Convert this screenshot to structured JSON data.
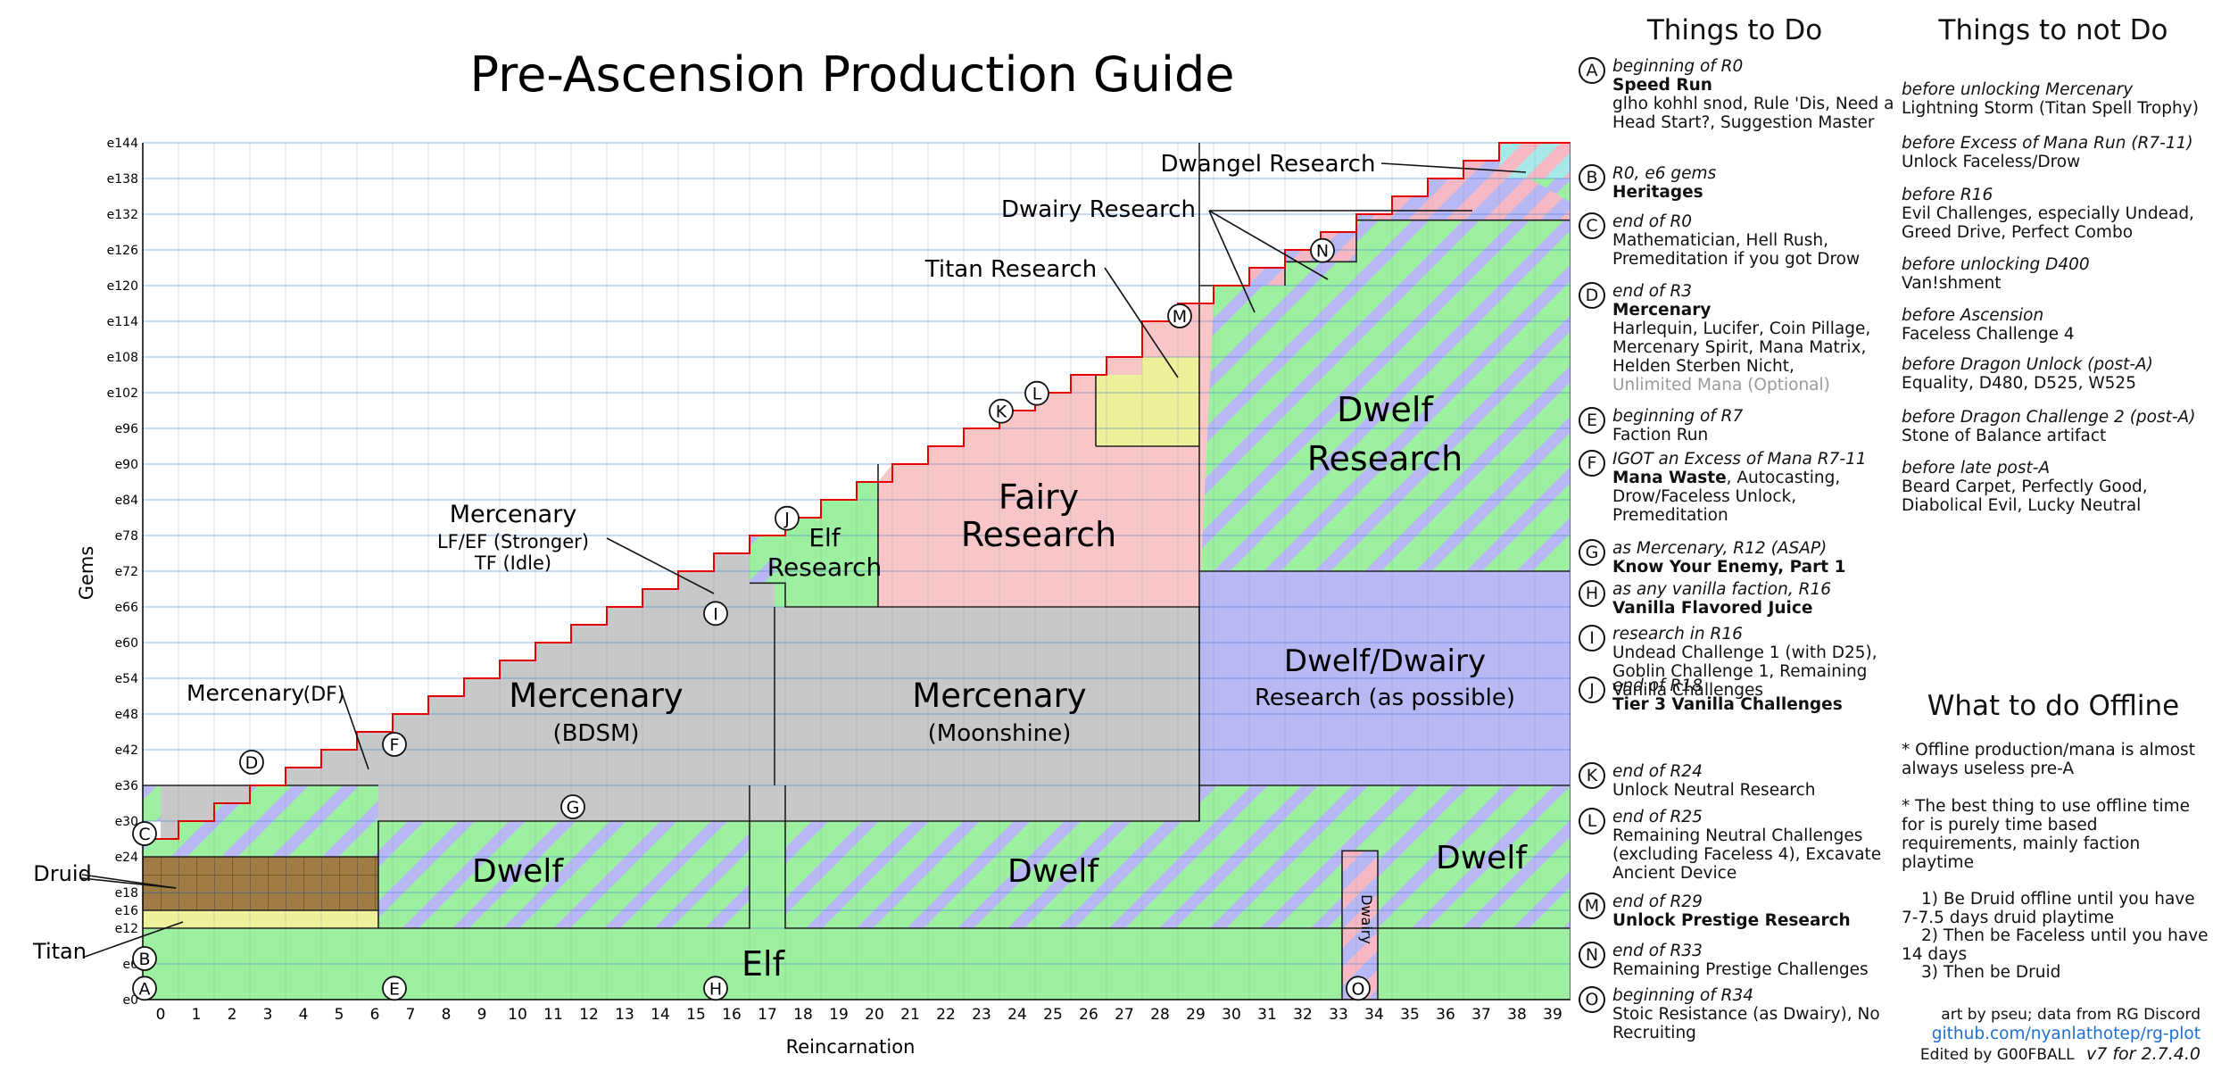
{
  "title": "Pre-Ascension Production Guide",
  "xlabel": "Reincarnation",
  "ylabel": "Gems",
  "colors": {
    "elf": "#9cf0a0",
    "dwelf_a": "#9cf0a0",
    "dwelf_b": "#b8b8f4",
    "dwelf_c": "#f6b9c4",
    "mercenary": "#c8c8c8",
    "fairy": "#f8c6c6",
    "titan": "#eef09a",
    "druid": "#a07c44",
    "dwelf_dwairy": "#b8b8f4",
    "frontier": "#e00000",
    "link": "#1e6fd0"
  },
  "x_ticks": [
    "0",
    "1",
    "2",
    "3",
    "4",
    "5",
    "6",
    "7",
    "8",
    "9",
    "10",
    "11",
    "12",
    "13",
    "14",
    "15",
    "16",
    "17",
    "18",
    "19",
    "20",
    "21",
    "22",
    "23",
    "24",
    "25",
    "26",
    "27",
    "28",
    "29",
    "30",
    "31",
    "32",
    "33",
    "34",
    "35",
    "36",
    "37",
    "38",
    "39"
  ],
  "y_ticks": [
    "e0",
    "e6",
    "e12",
    "e16",
    "e18",
    "e24",
    "e30",
    "e36",
    "e42",
    "e48",
    "e54",
    "e60",
    "e66",
    "e72",
    "e78",
    "e84",
    "e90",
    "e96",
    "e102",
    "e108",
    "e114",
    "e120",
    "e126",
    "e132",
    "e138",
    "e144"
  ],
  "y_tick_values": [
    0,
    6,
    12,
    16,
    18,
    24,
    30,
    36,
    42,
    48,
    54,
    60,
    66,
    72,
    78,
    84,
    90,
    96,
    102,
    108,
    114,
    120,
    126,
    132,
    138,
    144
  ],
  "regions": {
    "elf_bottom": "Elf",
    "dwelf_left": "Dwelf",
    "dwelf_mid": "Dwelf",
    "dwelf_right": "Dwelf",
    "dwairy_strip": "Dwairy",
    "merc_bdsm_1": "Mercenary",
    "merc_bdsm_2": "(BDSM)",
    "merc_moon_1": "Mercenary",
    "merc_moon_2": "(Moonshine)",
    "elf_research_1": "Elf",
    "elf_research_2": "Research",
    "fairy_1": "Fairy",
    "fairy_2": "Research",
    "dwelf_research_1": "Dwelf",
    "dwelf_research_2": "Research",
    "dwelf_dwairy_1": "Dwelf/Dwairy",
    "dwelf_dwairy_2": "Research (as possible)"
  },
  "callouts": {
    "druid": "Druid",
    "titan": "Titan",
    "merc_df": "Mercenary",
    "merc_df_paren": "(DF)",
    "merc_stronger_1": "Mercenary",
    "merc_stronger_2": "LF/EF (Stronger)",
    "merc_stronger_3": "TF (Idle)",
    "titan_research": "Titan Research",
    "dwairy_research": "Dwairy Research",
    "dwangel_research": "Dwangel Research"
  },
  "markers": [
    {
      "id": "A",
      "x": 0,
      "y": 1
    },
    {
      "id": "B",
      "x": 0,
      "y": 6
    },
    {
      "id": "C",
      "x": 0,
      "y": 27
    },
    {
      "id": "D",
      "x": 3,
      "y": 39
    },
    {
      "id": "E",
      "x": 7,
      "y": 1
    },
    {
      "id": "F",
      "x": 7,
      "y": 42
    },
    {
      "id": "G",
      "x": 12,
      "y": 31.5
    },
    {
      "id": "H",
      "x": 16,
      "y": 1
    },
    {
      "id": "I",
      "x": 16,
      "y": 64
    },
    {
      "id": "J",
      "x": 18,
      "y": 80
    },
    {
      "id": "K",
      "x": 24,
      "y": 98
    },
    {
      "id": "L",
      "x": 25,
      "y": 101
    },
    {
      "id": "M",
      "x": 29,
      "y": 114
    },
    {
      "id": "N",
      "x": 33,
      "y": 125
    },
    {
      "id": "O",
      "x": 34,
      "y": 1
    }
  ],
  "things_to_do_title": "Things to Do",
  "things_to_do": [
    {
      "id": "A",
      "when": "beginning of R0",
      "main": "Speed Run",
      "detail": "glho kohhl snod, Rule 'Dis, Need a Head Start?, Suggestion Master",
      "optional": ""
    },
    {
      "id": "B",
      "when": "R0, e6 gems",
      "main": "Heritages",
      "detail": "",
      "optional": ""
    },
    {
      "id": "C",
      "when": "end of R0",
      "main": "",
      "detail": "Mathematician, Hell Rush, Premeditation if you got Drow",
      "optional": ""
    },
    {
      "id": "D",
      "when": "end of R3",
      "main": "Mercenary",
      "detail": "Harlequin, Lucifer, Coin Pillage, Mercenary Spirit, Mana Matrix, Helden Sterben Nicht,",
      "optional": "Unlimited Mana (Optional)"
    },
    {
      "id": "E",
      "when": "beginning of R7",
      "main": "",
      "detail": "Faction Run",
      "optional": ""
    },
    {
      "id": "F",
      "when": "IGOT an Excess of Mana R7-11",
      "main": "Mana Waste",
      "detail": ", Autocasting, Drow/Faceless Unlock, Premeditation",
      "optional": ""
    },
    {
      "id": "G",
      "when": "as Mercenary, R12 (ASAP)",
      "main": "Know Your Enemy, Part 1",
      "detail": "",
      "optional": ""
    },
    {
      "id": "H",
      "when": "as any vanilla faction, R16",
      "main": "Vanilla Flavored Juice",
      "detail": "",
      "optional": ""
    },
    {
      "id": "I",
      "when": "research in R16",
      "main": "",
      "detail": "Undead Challenge 1 (with D25), Goblin Challenge 1, Remaining Vanilla Challenges",
      "optional": ""
    },
    {
      "id": "J",
      "when": "end of R18",
      "main": "Tier 3 Vanilla Challenges",
      "detail": "",
      "optional": ""
    },
    {
      "id": "K",
      "when": "end of R24",
      "main": "",
      "detail": "Unlock Neutral Research",
      "optional": ""
    },
    {
      "id": "L",
      "when": "end of R25",
      "main": "",
      "detail": "Remaining Neutral Challenges (excluding Faceless 4), Excavate Ancient Device",
      "optional": ""
    },
    {
      "id": "M",
      "when": "end of R29",
      "main": "Unlock Prestige Research",
      "detail": "",
      "optional": ""
    },
    {
      "id": "N",
      "when": "end of R33",
      "main": "",
      "detail": "Remaining Prestige Challenges",
      "optional": ""
    },
    {
      "id": "O",
      "when": "beginning of R34",
      "main": "",
      "detail": "Stoic Resistance (as Dwairy), No Recruiting",
      "optional": ""
    }
  ],
  "things_not_title": "Things to not Do",
  "things_not": [
    {
      "when": "before unlocking Mercenary",
      "detail": "Lightning Storm (Titan Spell Trophy)"
    },
    {
      "when": "before Excess of Mana Run (R7-11)",
      "detail": "Unlock Faceless/Drow"
    },
    {
      "when": "before R16",
      "detail": "Evil Challenges, especially Undead, Greed Drive, Perfect Combo"
    },
    {
      "when": "before unlocking D400",
      "detail": "Van!shment"
    },
    {
      "when": "before Ascension",
      "detail": "Faceless Challenge 4"
    },
    {
      "when": "before Dragon Unlock (post-A)",
      "detail": "Equality, D480, D525, W525"
    },
    {
      "when": "before Dragon Challenge 2 (post-A)",
      "detail": "Stone of Balance artifact"
    },
    {
      "when": "before late post-A",
      "detail": "Beard Carpet, Perfectly Good, Diabolical Evil, Lucky Neutral"
    }
  ],
  "offline_title": "What to do Offline",
  "offline_p1": "* Offline production/mana is almost always useless pre-A",
  "offline_p2": "* The best thing to use offline time for is purely time based requirements, mainly faction playtime",
  "offline_s1": "1) Be Druid offline until you have 7-7.5 days druid playtime",
  "offline_s2": "2) Then be Faceless until you have 14 days",
  "offline_s3": "3) Then be Druid",
  "credit_art": "art by pseu; data from RG Discord",
  "credit_link": "github.com/nyanlathotep/rg-plot",
  "credit_edit": "Edited by G00FBALL",
  "credit_version": "v7 for 2.7.4.0"
}
